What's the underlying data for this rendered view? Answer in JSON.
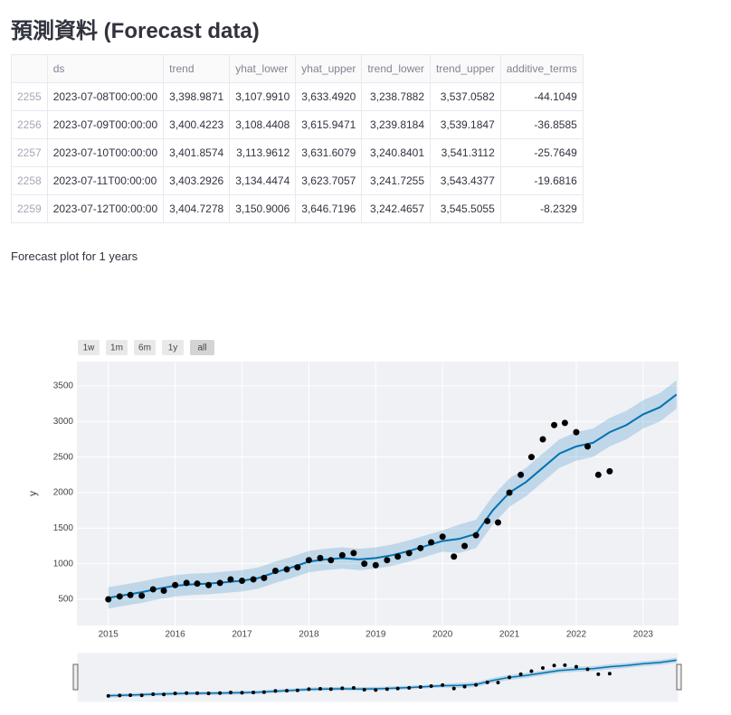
{
  "header": {
    "title": "預測資料 (Forecast data)"
  },
  "table": {
    "columns": [
      "",
      "ds",
      "trend",
      "yhat_lower",
      "yhat_upper",
      "trend_lower",
      "trend_upper",
      "additive_terms"
    ],
    "rows": [
      [
        "2255",
        "2023-07-08T00:00:00",
        "3,398.9871",
        "3,107.9910",
        "3,633.4920",
        "3,238.7882",
        "3,537.0582",
        "-44.1049"
      ],
      [
        "2256",
        "2023-07-09T00:00:00",
        "3,400.4223",
        "3,108.4408",
        "3,615.9471",
        "3,239.8184",
        "3,539.1847",
        "-36.8585"
      ],
      [
        "2257",
        "2023-07-10T00:00:00",
        "3,401.8574",
        "3,113.9612",
        "3,631.6079",
        "3,240.8401",
        "3,541.3112",
        "-25.7649"
      ],
      [
        "2258",
        "2023-07-11T00:00:00",
        "3,403.2926",
        "3,134.4474",
        "3,623.7057",
        "3,241.7255",
        "3,543.4377",
        "-19.6816"
      ],
      [
        "2259",
        "2023-07-12T00:00:00",
        "3,404.7278",
        "3,150.9006",
        "3,646.7196",
        "3,242.4657",
        "3,545.5055",
        "-8.2329"
      ]
    ]
  },
  "caption": "Forecast plot for 1 years",
  "chart_data": {
    "type": "forecast",
    "ylabel": "y",
    "range_buttons": [
      "1w",
      "1m",
      "6m",
      "1y",
      "all"
    ],
    "active_button": "all",
    "xlim": [
      2014.53,
      2023.53
    ],
    "xticks": [
      2015,
      2016,
      2017,
      2018,
      2019,
      2020,
      2021,
      2022,
      2023
    ],
    "ylim": [
      131,
      3843
    ],
    "yticks": [
      500,
      1000,
      1500,
      2000,
      2500,
      3000,
      3500
    ],
    "grid": true,
    "range_slider": true,
    "series": [
      {
        "mode": "markers",
        "color": "#000000",
        "x": [
          2015.0,
          2015.17,
          2015.33,
          2015.5,
          2015.67,
          2015.83,
          2016.0,
          2016.17,
          2016.33,
          2016.5,
          2016.67,
          2016.83,
          2017.0,
          2017.17,
          2017.33,
          2017.5,
          2017.67,
          2017.83,
          2018.0,
          2018.17,
          2018.33,
          2018.5,
          2018.67,
          2018.83,
          2019.0,
          2019.17,
          2019.33,
          2019.5,
          2019.67,
          2019.83,
          2020.0,
          2020.17,
          2020.33,
          2020.5,
          2020.67,
          2020.83,
          2021.0,
          2021.17,
          2021.33,
          2021.5,
          2021.67,
          2021.83,
          2022.0,
          2022.17,
          2022.33,
          2022.5
        ],
        "values": [
          500,
          540,
          560,
          550,
          640,
          620,
          700,
          730,
          720,
          700,
          730,
          780,
          760,
          780,
          800,
          900,
          920,
          950,
          1050,
          1080,
          1050,
          1120,
          1150,
          1000,
          980,
          1050,
          1100,
          1150,
          1220,
          1300,
          1380,
          1100,
          1250,
          1400,
          1600,
          1580,
          2000,
          2250,
          2500,
          2750,
          2950,
          2980,
          2850,
          2650,
          2250,
          2300
        ]
      },
      {
        "mode": "lines",
        "color": "#0072b2",
        "band_color": "rgba(0,114,178,0.2)",
        "x": [
          2015.0,
          2015.25,
          2015.5,
          2015.75,
          2016.0,
          2016.25,
          2016.5,
          2016.75,
          2017.0,
          2017.25,
          2017.5,
          2017.75,
          2018.0,
          2018.25,
          2018.5,
          2018.75,
          2019.0,
          2019.25,
          2019.5,
          2019.75,
          2020.0,
          2020.25,
          2020.5,
          2020.75,
          2021.0,
          2021.25,
          2021.5,
          2021.75,
          2022.0,
          2022.25,
          2022.5,
          2022.75,
          2023.0,
          2023.25,
          2023.5
        ],
        "values": [
          520,
          560,
          600,
          650,
          690,
          710,
          720,
          740,
          760,
          800,
          880,
          950,
          1030,
          1060,
          1080,
          1060,
          1080,
          1120,
          1180,
          1250,
          1320,
          1350,
          1420,
          1750,
          2000,
          2150,
          2350,
          2550,
          2650,
          2700,
          2850,
          2950,
          3100,
          3200,
          3380
        ],
        "lower": [
          370,
          410,
          450,
          500,
          540,
          560,
          570,
          590,
          610,
          650,
          730,
          800,
          880,
          910,
          930,
          910,
          930,
          970,
          1030,
          1100,
          1170,
          1150,
          1220,
          1550,
          1800,
          1950,
          2150,
          2350,
          2450,
          2500,
          2650,
          2750,
          2900,
          3000,
          3180
        ],
        "upper": [
          670,
          710,
          750,
          800,
          840,
          860,
          870,
          890,
          910,
          950,
          1030,
          1100,
          1180,
          1210,
          1230,
          1210,
          1230,
          1270,
          1330,
          1400,
          1470,
          1550,
          1620,
          1950,
          2200,
          2350,
          2550,
          2750,
          2850,
          2900,
          3050,
          3150,
          3300,
          3400,
          3580
        ]
      }
    ]
  }
}
